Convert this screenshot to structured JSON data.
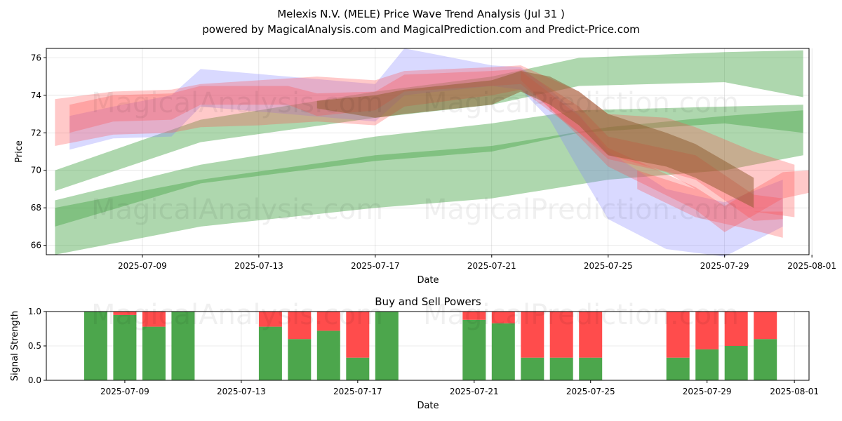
{
  "chart_data": [
    {
      "type": "area",
      "title": "Melexis N.V. (MELE) Price Wave Trend Analysis (Jul 31 )",
      "subtitle": "powered by MagicalAnalysis.com and MagicalPrediction.com and Predict-Price.com",
      "xlabel": "Date",
      "ylabel": "Price",
      "xlim": [
        "2025-07-05.7",
        "2025-07-31.9"
      ],
      "ylim": [
        65.5,
        76.5
      ],
      "x_ticks": [
        "2025-07-09",
        "2025-07-13",
        "2025-07-17",
        "2025-07-21",
        "2025-07-25",
        "2025-07-29",
        "2025-08-01"
      ],
      "y_ticks": [
        66,
        68,
        70,
        72,
        74,
        76
      ],
      "grid": true,
      "bands": [
        {
          "color": "green",
          "points": [
            [
              "2025-07-06",
              68.9,
              70.0
            ],
            [
              "2025-07-11",
              71.5,
              72.7
            ],
            [
              "2025-07-17",
              72.8,
              74.2
            ],
            [
              "2025-07-21",
              73.5,
              75.0
            ],
            [
              "2025-07-24",
              74.5,
              76.0
            ],
            [
              "2025-07-29",
              74.7,
              76.3
            ],
            [
              "2025-07-31.7",
              73.9,
              76.4
            ]
          ]
        },
        {
          "color": "green",
          "points": [
            [
              "2025-07-06",
              67.0,
              68.4
            ],
            [
              "2025-07-11",
              69.3,
              70.3
            ],
            [
              "2025-07-17",
              70.5,
              71.8
            ],
            [
              "2025-07-21",
              71.0,
              72.5
            ],
            [
              "2025-07-24",
              72.0,
              73.2
            ],
            [
              "2025-07-29",
              72.5,
              73.4
            ],
            [
              "2025-07-31.7",
              72.0,
              73.5
            ]
          ]
        },
        {
          "color": "green",
          "points": [
            [
              "2025-07-06",
              65.5,
              68.0
            ],
            [
              "2025-07-11",
              67.0,
              69.5
            ],
            [
              "2025-07-17",
              68.0,
              70.8
            ],
            [
              "2025-07-21",
              68.5,
              71.3
            ],
            [
              "2025-07-25",
              69.5,
              72.3
            ],
            [
              "2025-07-29",
              70.0,
              72.9
            ],
            [
              "2025-07-31.7",
              70.8,
              73.2
            ]
          ]
        },
        {
          "color": "blue",
          "points": [
            [
              "2025-07-06.5",
              71.1,
              72.9
            ],
            [
              "2025-07-08",
              71.7,
              73.4
            ],
            [
              "2025-07-10",
              71.8,
              74.0
            ],
            [
              "2025-07-11",
              73.4,
              75.4
            ],
            [
              "2025-07-14",
              73.0,
              75.0
            ],
            [
              "2025-07-17",
              72.6,
              74.6
            ],
            [
              "2025-07-18",
              74.0,
              76.5
            ],
            [
              "2025-07-21",
              74.5,
              75.6
            ],
            [
              "2025-07-22",
              74.3,
              75.5
            ],
            [
              "2025-07-23",
              72.7,
              74.3
            ],
            [
              "2025-07-24",
              70.0,
              73.0
            ],
            [
              "2025-07-25",
              67.4,
              71.0
            ],
            [
              "2025-07-27",
              65.8,
              69.0
            ],
            [
              "2025-07-29",
              65.4,
              68.3
            ],
            [
              "2025-07-31",
              67.0,
              69.5
            ]
          ]
        },
        {
          "color": "red",
          "points": [
            [
              "2025-07-06",
              71.3,
              73.8
            ],
            [
              "2025-07-08",
              71.9,
              74.2
            ],
            [
              "2025-07-10",
              72.0,
              74.3
            ],
            [
              "2025-07-11",
              72.3,
              74.6
            ],
            [
              "2025-07-13",
              72.4,
              74.8
            ],
            [
              "2025-07-15",
              72.6,
              75.0
            ],
            [
              "2025-07-17",
              72.4,
              74.8
            ],
            [
              "2025-07-18",
              73.4,
              75.3
            ],
            [
              "2025-07-21",
              74.0,
              75.5
            ],
            [
              "2025-07-22",
              74.3,
              75.6
            ],
            [
              "2025-07-24",
              72.0,
              74.2
            ],
            [
              "2025-07-25",
              70.6,
              73.0
            ],
            [
              "2025-07-27",
              69.9,
              72.8
            ],
            [
              "2025-07-28",
              69.0,
              72.3
            ],
            [
              "2025-07-30",
              67.8,
              71.0
            ],
            [
              "2025-07-31.4",
              67.5,
              70.3
            ]
          ]
        },
        {
          "color": "red",
          "points": [
            [
              "2025-07-06.5",
              72.0,
              73.5
            ],
            [
              "2025-07-08",
              72.6,
              74.0
            ],
            [
              "2025-07-10",
              72.7,
              74.1
            ],
            [
              "2025-07-11",
              73.5,
              74.5
            ],
            [
              "2025-07-14",
              73.5,
              74.5
            ],
            [
              "2025-07-15",
              72.9,
              74.1
            ],
            [
              "2025-07-17",
              73.2,
              74.2
            ],
            [
              "2025-07-18",
              74.2,
              75.1
            ],
            [
              "2025-07-21",
              74.5,
              75.3
            ],
            [
              "2025-07-22",
              74.6,
              75.4
            ],
            [
              "2025-07-24",
              72.0,
              73.4
            ],
            [
              "2025-07-25",
              70.8,
              71.8
            ],
            [
              "2025-07-28",
              69.5,
              70.8
            ],
            [
              "2025-07-30",
              67.3,
              68.7
            ],
            [
              "2025-07-31",
              67.4,
              68.5
            ]
          ]
        },
        {
          "color": "red",
          "points": [
            [
              "2025-07-22",
              74.8,
              75.3
            ],
            [
              "2025-07-24",
              71.8,
              72.9
            ],
            [
              "2025-07-25",
              70.2,
              71.2
            ],
            [
              "2025-07-28",
              67.9,
              69.1
            ],
            [
              "2025-07-29",
              66.7,
              68.1
            ],
            [
              "2025-07-31",
              68.5,
              69.9
            ],
            [
              "2025-07-31.9",
              68.8,
              70.0
            ]
          ]
        },
        {
          "color": "red",
          "points": [
            [
              "2025-07-26",
              69.0,
              70.0
            ],
            [
              "2025-07-28",
              67.5,
              69.0
            ],
            [
              "2025-07-30",
              66.8,
              67.8
            ],
            [
              "2025-07-31",
              66.4,
              67.8
            ]
          ]
        },
        {
          "color": "brown",
          "points": [
            [
              "2025-07-15",
              73.3,
              73.7
            ],
            [
              "2025-07-17",
              72.8,
              74.0
            ],
            [
              "2025-07-18",
              73.0,
              74.3
            ],
            [
              "2025-07-21",
              73.5,
              74.8
            ],
            [
              "2025-07-22",
              74.2,
              75.3
            ],
            [
              "2025-07-23",
              73.5,
              75.0
            ],
            [
              "2025-07-24",
              72.4,
              74.2
            ],
            [
              "2025-07-25",
              70.8,
              73.0
            ],
            [
              "2025-07-27",
              70.2,
              72.0
            ],
            [
              "2025-07-28",
              69.6,
              71.4
            ],
            [
              "2025-07-30",
              68.0,
              69.6
            ]
          ]
        }
      ]
    },
    {
      "type": "bar",
      "title": "Buy and Sell Powers",
      "xlabel": "Date",
      "ylabel": "Signal Strength",
      "ylim": [
        0,
        1
      ],
      "y_ticks": [
        "0.0",
        "0.5",
        "1.0"
      ],
      "x_ticks": [
        "2025-07-09",
        "2025-07-13",
        "2025-07-17",
        "2025-07-21",
        "2025-07-25",
        "2025-07-29",
        "2025-08-01"
      ],
      "grid": true,
      "dates": [
        "2025-07-08",
        "2025-07-09",
        "2025-07-10",
        "2025-07-11",
        "2025-07-14",
        "2025-07-15",
        "2025-07-16",
        "2025-07-17",
        "2025-07-18",
        "2025-07-21",
        "2025-07-22",
        "2025-07-23",
        "2025-07-24",
        "2025-07-25",
        "2025-07-28",
        "2025-07-29",
        "2025-07-30",
        "2025-07-31"
      ],
      "series": [
        {
          "color": "#4ca64c",
          "values": [
            1.0,
            0.95,
            0.78,
            1.0,
            0.78,
            0.6,
            0.72,
            0.33,
            1.0,
            0.88,
            0.83,
            0.33,
            0.33,
            0.33,
            0.33,
            0.45,
            0.5,
            0.6
          ]
        },
        {
          "color": "#ff4c4c",
          "values": [
            0.0,
            0.05,
            0.22,
            0.0,
            0.22,
            0.4,
            0.28,
            0.67,
            0.0,
            0.12,
            0.17,
            0.67,
            0.67,
            0.67,
            0.67,
            0.55,
            0.5,
            0.4
          ]
        }
      ]
    }
  ],
  "watermark": {
    "left": "MagicalAnalysis.com",
    "right": "MagicalPrediction.com"
  },
  "colors": {
    "green": "#4ca64c",
    "blue": "#8080ff",
    "red": "#ff4c4c",
    "brown": "#8b5a2b"
  }
}
